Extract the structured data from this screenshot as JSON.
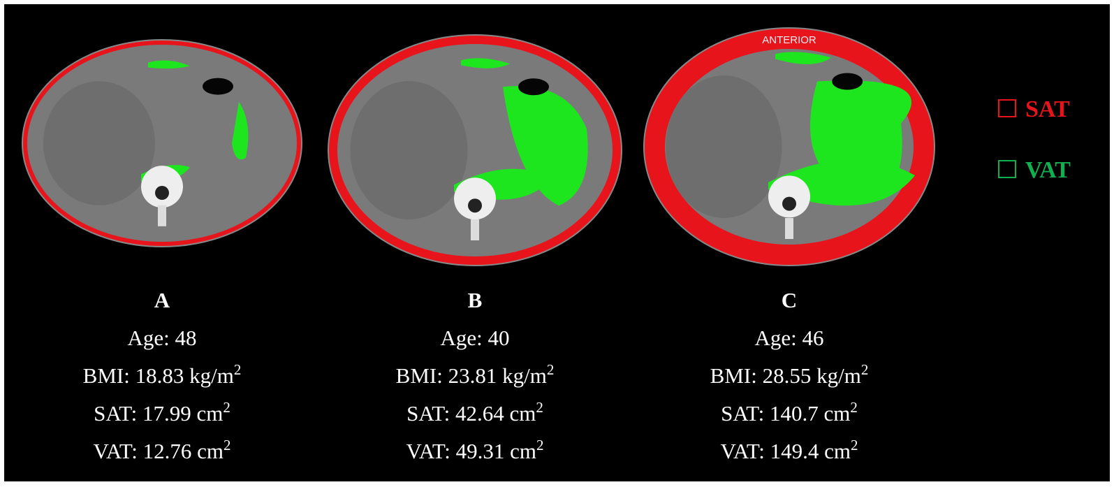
{
  "panels": [
    {
      "label": "A",
      "age": "Age: 48",
      "bmi": {
        "text": "BMI: 18.83 kg/m",
        "sup": "2"
      },
      "sat": {
        "text": "SAT: 17.99 cm",
        "sup": "2"
      },
      "vat": {
        "text": "VAT: 12.76 cm",
        "sup": "2"
      }
    },
    {
      "label": "B",
      "age": "Age: 40",
      "bmi": {
        "text": "BMI: 23.81 kg/m",
        "sup": "2"
      },
      "sat": {
        "text": "SAT: 42.64 cm",
        "sup": "2"
      },
      "vat": {
        "text": "VAT: 49.31 cm",
        "sup": "2"
      }
    },
    {
      "label": "C",
      "age": "Age: 46",
      "bmi": {
        "text": "BMI: 28.55 kg/m",
        "sup": "2"
      },
      "sat": {
        "text": "SAT: 140.7 cm",
        "sup": "2"
      },
      "vat": {
        "text": "VAT: 149.4 cm",
        "sup": "2"
      },
      "annotation": "ANTERIOR"
    }
  ],
  "legend": [
    {
      "label": "SAT",
      "color": "#e8141c"
    },
    {
      "label": "VAT",
      "color": "#10b050"
    }
  ]
}
